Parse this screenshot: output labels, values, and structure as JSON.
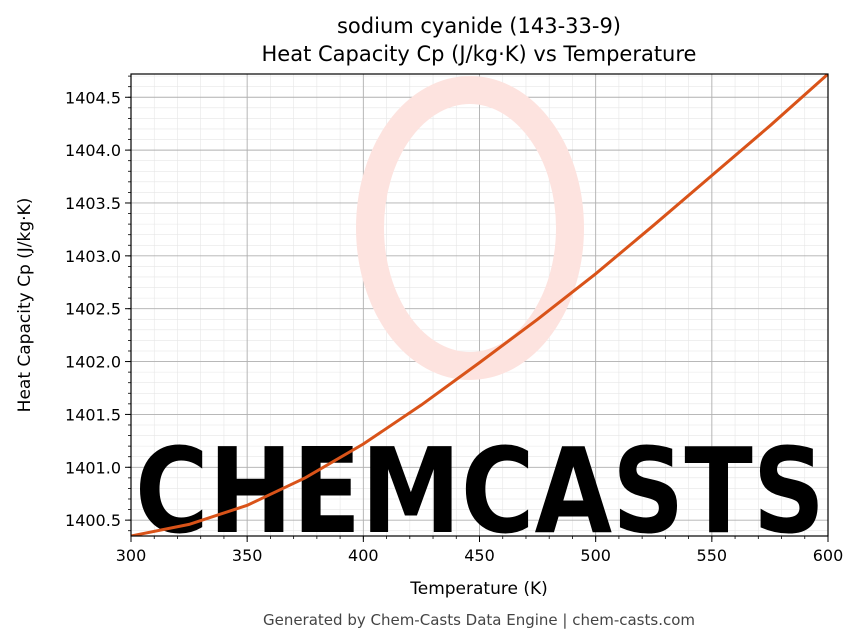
{
  "chart_data": {
    "type": "line",
    "title": "sodium cyanide (143-33-9)",
    "subtitle": "Heat Capacity Cp (J/kg·K) vs Temperature",
    "xlabel": "Temperature (K)",
    "ylabel": "Heat Capacity Cp (J/kg·K)",
    "xlim": [
      300,
      600
    ],
    "ylim": [
      1400.35,
      1404.72
    ],
    "x_ticks": [
      300,
      350,
      400,
      450,
      500,
      550,
      600
    ],
    "y_ticks": [
      1400.5,
      1401.0,
      1401.5,
      1402.0,
      1402.5,
      1403.0,
      1403.5,
      1404.0,
      1404.5
    ],
    "x_tick_labels": [
      "300",
      "350",
      "400",
      "450",
      "500",
      "550",
      "600"
    ],
    "y_tick_labels": [
      "1400.5",
      "1401.0",
      "1401.5",
      "1402.0",
      "1402.5",
      "1403.0",
      "1403.5",
      "1404.0",
      "1404.5"
    ],
    "grid": true,
    "series": [
      {
        "color": "#d95319",
        "x": [
          300,
          325,
          350,
          375,
          400,
          425,
          450,
          475,
          500,
          525,
          550,
          575,
          600
        ],
        "y": [
          1400.35,
          1400.46,
          1400.64,
          1400.9,
          1401.22,
          1401.59,
          1401.99,
          1402.4,
          1402.83,
          1403.29,
          1403.76,
          1404.23,
          1404.72
        ]
      }
    ]
  },
  "watermark": {
    "text": "CHEMCASTS",
    "color": "#fde3df"
  },
  "footer": "Generated by Chem-Casts Data Engine | chem-casts.com"
}
